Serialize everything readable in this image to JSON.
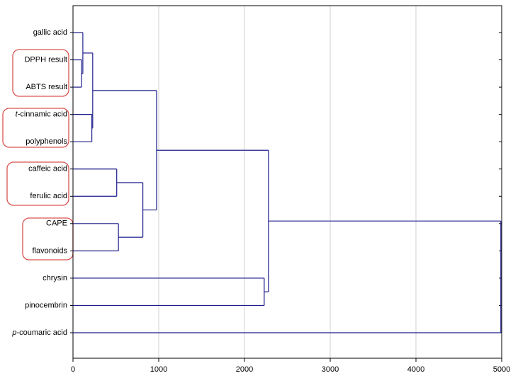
{
  "chart_data": {
    "type": "dendrogram",
    "leaves": [
      "gallic acid",
      "DPPH result",
      "ABTS result",
      "t-cinnamic acid",
      "polyphenols",
      "caffeic acid",
      "ferulic acid",
      "CAPE",
      "flavonoids",
      "chrysin",
      "pinocembrin",
      "p-coumaric acid"
    ],
    "italic_first_letter": [
      3,
      11
    ],
    "merges": [
      {
        "children": [
          1,
          2
        ],
        "distance": 100
      },
      {
        "children": [
          0,
          12
        ],
        "distance": 115
      },
      {
        "children": [
          3,
          4
        ],
        "distance": 220
      },
      {
        "children": [
          13,
          14
        ],
        "distance": 230
      },
      {
        "children": [
          5,
          6
        ],
        "distance": 510
      },
      {
        "children": [
          7,
          8
        ],
        "distance": 530
      },
      {
        "children": [
          16,
          17
        ],
        "distance": 815
      },
      {
        "children": [
          15,
          18
        ],
        "distance": 975
      },
      {
        "children": [
          9,
          10
        ],
        "distance": 2230
      },
      {
        "children": [
          19,
          20
        ],
        "distance": 2280
      },
      {
        "children": [
          21,
          11
        ],
        "distance": 4990
      }
    ],
    "color": "#1c1c8c",
    "xlim": [
      0,
      5000
    ],
    "xticks": [
      0,
      1000,
      2000,
      3000,
      4000,
      5000
    ],
    "grid": true
  }
}
